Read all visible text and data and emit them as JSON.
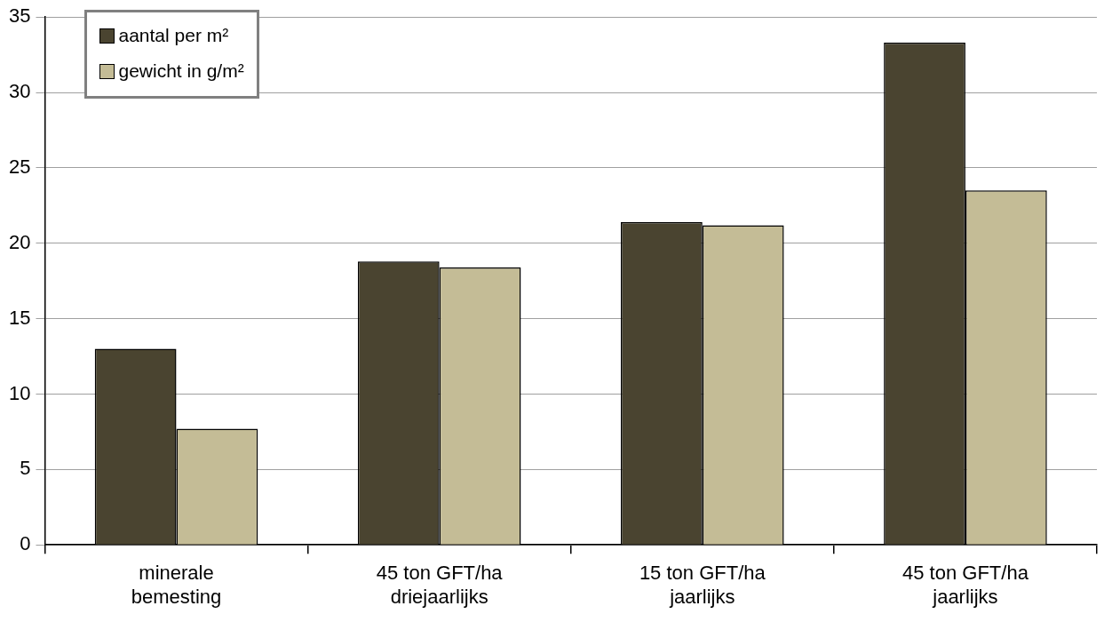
{
  "chart_data": {
    "type": "bar",
    "categories": [
      "minerale bemesting",
      "45 ton GFT/ha driejaarlijks",
      "15 ton GFT/ha jaarlijks",
      "45 ton GFT/ha jaarlijks"
    ],
    "series": [
      {
        "name": "aantal per m²",
        "color": "#4a4430",
        "values": [
          13.0,
          18.8,
          21.4,
          33.3
        ]
      },
      {
        "name": "gewicht in g/m²",
        "color": "#c4bc96",
        "values": [
          7.7,
          18.4,
          21.2,
          23.5
        ]
      }
    ],
    "ylim": [
      0,
      35
    ],
    "yticks": [
      0,
      5,
      10,
      15,
      20,
      25,
      30,
      35
    ],
    "grid": "y",
    "legend": "top left"
  }
}
